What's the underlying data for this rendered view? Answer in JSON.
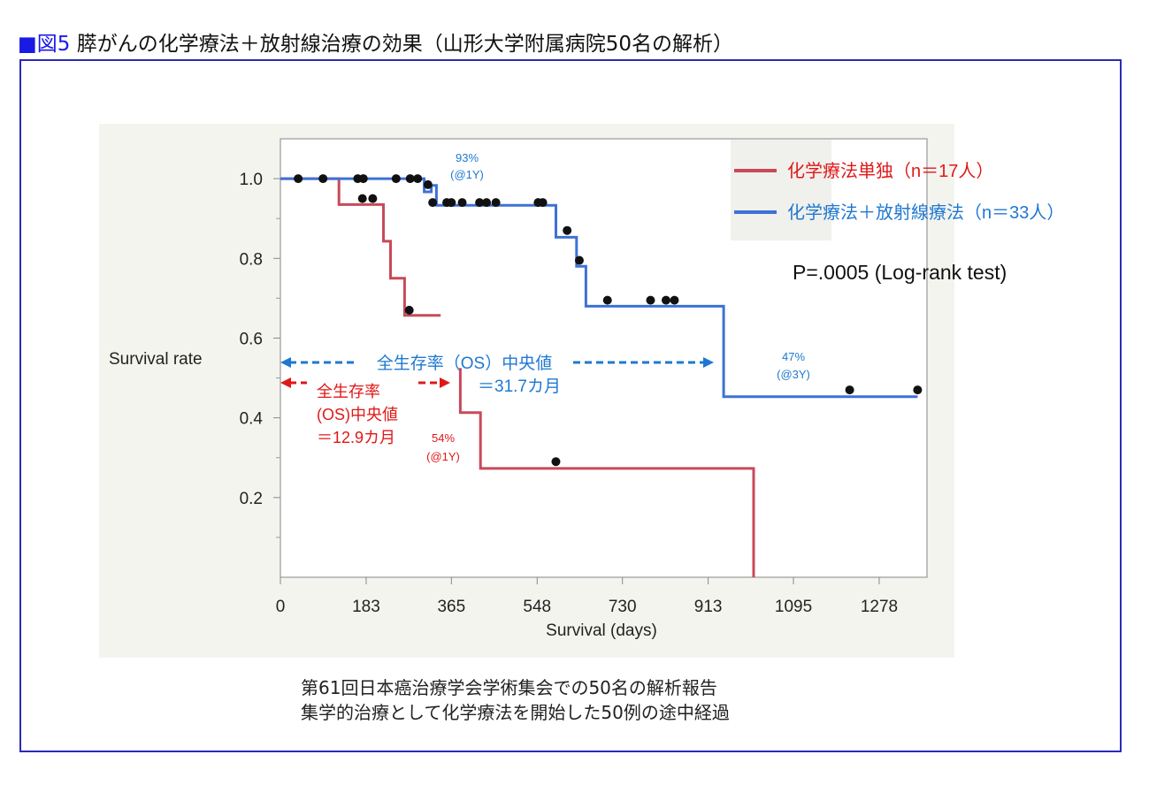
{
  "figure_title": {
    "marker": "■",
    "label": "図5",
    "text": "膵がんの化学療法＋放射線治療の効果（山形大学附属病院50名の解析）"
  },
  "caption": {
    "line1": "第61回日本癌治療学会学術集会での50名の解析報告",
    "line2": "集学的治療として化学療法を開始した50例の途中経過"
  },
  "colors": {
    "chemo": "#c84a5a",
    "chemo_rad": "#3d72d6",
    "panel_bg": "#f4f4ef",
    "red_text": "#e01818",
    "blue_text": "#1f78d0"
  },
  "chart_data": {
    "type": "line",
    "subtype": "kaplan-meier",
    "xlabel": "Survival (days)",
    "ylabel": "Survival rate",
    "x_ticks": [
      0,
      183,
      365,
      548,
      730,
      913,
      1095,
      1278
    ],
    "y_ticks": [
      0.2,
      0.4,
      0.6,
      0.8,
      1.0
    ],
    "y_tick_labels": [
      "0.2",
      "0.4",
      "0.6",
      "0.8",
      "1.0"
    ],
    "xlim": [
      0,
      1380
    ],
    "ylim": [
      0,
      1.1
    ],
    "grid": false,
    "legend_position": "top-right",
    "series": [
      {
        "name": "化学療法単独（n＝17人）",
        "color": "#c84a5a",
        "steps": [
          [
            0,
            1.0
          ],
          [
            125,
            0.935
          ],
          [
            220,
            0.843
          ],
          [
            235,
            0.75
          ],
          [
            265,
            0.657
          ],
          [
            342,
            0.657
          ]
        ],
        "censored": [
          [
            38,
            1.0
          ],
          [
            91,
            1.0
          ],
          [
            165,
            1.0
          ],
          [
            177,
            1.0
          ],
          [
            247,
            1.0
          ],
          [
            277,
            1.0
          ],
          [
            293,
            1.0
          ],
          [
            175,
            0.95
          ],
          [
            197,
            0.95
          ],
          [
            275,
            0.67
          ]
        ],
        "steps_low": [
          [
            384,
            0.525
          ],
          [
            384,
            0.413
          ],
          [
            427,
            0.413
          ],
          [
            427,
            0.273
          ],
          [
            1010,
            0.273
          ],
          [
            1010,
            0.0
          ]
        ],
        "censored_low": [
          [
            588,
            0.29
          ]
        ]
      },
      {
        "name": "化学療法＋放射線療法（n＝33人）",
        "color": "#3d72d6",
        "steps": [
          [
            0,
            1.0
          ],
          [
            307,
            0.967
          ],
          [
            322,
            0.983
          ],
          [
            333,
            0.933
          ],
          [
            588,
            0.853
          ],
          [
            632,
            0.78
          ],
          [
            652,
            0.68
          ],
          [
            946,
            0.453
          ],
          [
            1360,
            0.453
          ]
        ],
        "censored": [
          [
            315,
            0.985
          ],
          [
            325,
            0.94
          ],
          [
            355,
            0.94
          ],
          [
            365,
            0.94
          ],
          [
            388,
            0.94
          ],
          [
            425,
            0.94
          ],
          [
            440,
            0.94
          ],
          [
            460,
            0.94
          ],
          [
            550,
            0.94
          ],
          [
            560,
            0.94
          ],
          [
            612,
            0.87
          ],
          [
            638,
            0.795
          ],
          [
            698,
            0.695
          ],
          [
            790,
            0.695
          ],
          [
            823,
            0.695
          ],
          [
            841,
            0.695
          ],
          [
            1215,
            0.47
          ],
          [
            1360,
            0.47
          ]
        ]
      }
    ],
    "annotations": {
      "p_value": "P=.0005 (Log-rank test)",
      "blue_1y": [
        "93%",
        "(@1Y)"
      ],
      "blue_3y": [
        "47%",
        "(@3Y)"
      ],
      "red_1y": [
        "54%",
        "(@1Y)"
      ],
      "blue_median": [
        "全生存率（OS）中央値",
        "＝31.7カ月"
      ],
      "red_median": [
        "全生存率",
        "(OS)中央値",
        "＝12.9カ月"
      ]
    }
  }
}
